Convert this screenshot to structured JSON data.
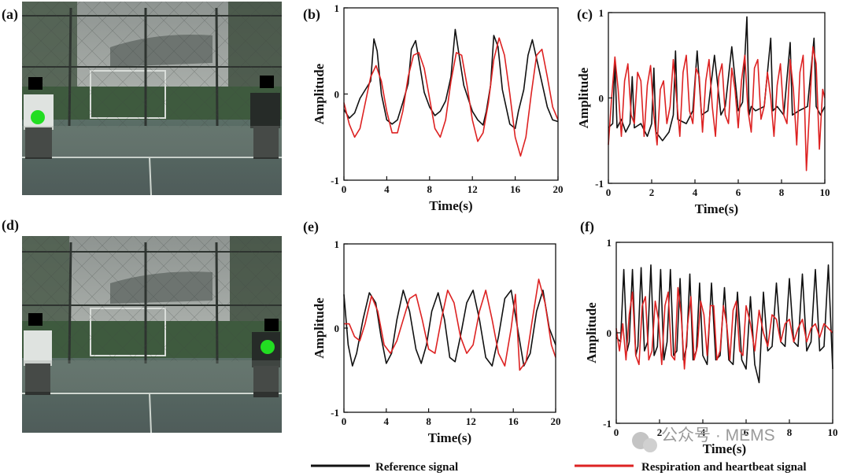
{
  "figure": {
    "photo_panels": [
      {
        "label": "(a)",
        "marker_color": "#22dd22"
      },
      {
        "label": "(d)",
        "marker_color": "#22dd22"
      }
    ],
    "legend": {
      "reference": {
        "label": "Reference signal",
        "color": "#111111"
      },
      "estimate": {
        "label": "Respiration and heartbeat signal",
        "color": "#dd2222"
      }
    },
    "watermark": "公众号 · MEMS"
  },
  "chart_data": [
    {
      "panel": "(b)",
      "type": "line",
      "xlabel": "Time(s)",
      "ylabel": "Amplitude",
      "xlim": [
        0,
        20
      ],
      "ylim": [
        -1,
        1
      ],
      "xticks": [
        "0",
        "4",
        "8",
        "12",
        "16",
        "20"
      ],
      "yticks": [
        "1",
        "0",
        "-1"
      ],
      "series": [
        {
          "name": "Reference signal",
          "color": "#111111",
          "x": [
            0,
            0.5,
            1,
            1.5,
            2,
            2.5,
            2.8,
            3.1,
            3.5,
            4,
            4.5,
            5,
            5.5,
            6,
            6.3,
            6.7,
            7,
            7.5,
            8,
            8.5,
            9,
            9.5,
            10,
            10.4,
            10.7,
            11.2,
            12,
            12.5,
            13,
            13.3,
            13.7,
            14,
            14.4,
            14.8,
            15.5,
            16,
            16.3,
            16.8,
            17.2,
            17.6,
            18.2,
            19,
            19.5,
            20
          ],
          "y": [
            -0.18,
            -0.28,
            -0.22,
            -0.05,
            0.05,
            0.15,
            0.64,
            0.5,
            0.0,
            -0.3,
            -0.35,
            -0.3,
            -0.1,
            0.12,
            0.52,
            0.62,
            0.4,
            0.02,
            -0.15,
            -0.25,
            -0.2,
            -0.08,
            0.2,
            0.75,
            0.5,
            0.1,
            -0.2,
            -0.3,
            -0.36,
            -0.2,
            0.1,
            0.68,
            0.55,
            0.05,
            -0.35,
            -0.4,
            -0.2,
            0.05,
            0.45,
            0.63,
            0.3,
            -0.15,
            -0.3,
            -0.32
          ]
        },
        {
          "name": "Respiration and heartbeat signal",
          "color": "#dd2222",
          "x": [
            0,
            0.5,
            1,
            1.5,
            2,
            2.5,
            3,
            3.5,
            4,
            4.5,
            5,
            5.5,
            6,
            6.5,
            7,
            7.5,
            8,
            8.5,
            9,
            9.5,
            10,
            10.5,
            11,
            11.5,
            12,
            12.5,
            13,
            13.5,
            14,
            14.5,
            15,
            15.5,
            16,
            16.5,
            17,
            17.5,
            18,
            18.5,
            19,
            19.5,
            20
          ],
          "y": [
            -0.1,
            -0.35,
            -0.5,
            -0.4,
            -0.1,
            0.2,
            0.33,
            0.15,
            -0.2,
            -0.45,
            -0.45,
            -0.2,
            0.2,
            0.45,
            0.48,
            0.3,
            -0.05,
            -0.4,
            -0.5,
            -0.3,
            0.15,
            0.48,
            0.45,
            0.1,
            -0.3,
            -0.55,
            -0.45,
            -0.1,
            0.4,
            0.65,
            0.45,
            0.0,
            -0.5,
            -0.72,
            -0.5,
            0.0,
            0.45,
            0.52,
            0.2,
            -0.15,
            -0.3
          ]
        }
      ]
    },
    {
      "panel": "(c)",
      "type": "line",
      "xlabel": "Time(s)",
      "ylabel": "Amplitude",
      "xlim": [
        0,
        10
      ],
      "ylim": [
        -1,
        1
      ],
      "xticks": [
        "0",
        "2",
        "4",
        "6",
        "8",
        "10"
      ],
      "yticks": [
        "1",
        "0",
        "-1"
      ],
      "series": [
        {
          "name": "Reference signal",
          "color": "#111111",
          "x": [
            0,
            0.2,
            0.3,
            0.4,
            0.6,
            0.8,
            1.0,
            1.1,
            1.2,
            1.5,
            1.8,
            2.0,
            2.1,
            2.2,
            2.5,
            2.8,
            3.0,
            3.1,
            3.2,
            3.6,
            3.9,
            4.1,
            4.3,
            4.6,
            4.9,
            5.2,
            5.4,
            5.7,
            6.0,
            6.2,
            6.4,
            6.5,
            6.6,
            6.8,
            7.2,
            7.5,
            7.6,
            7.8,
            8.1,
            8.4,
            8.5,
            8.8,
            9.2,
            9.5,
            9.6,
            9.8,
            10.0
          ],
          "y": [
            -0.35,
            -0.3,
            0.45,
            -0.35,
            -0.25,
            -0.4,
            -0.3,
            0.25,
            -0.35,
            -0.3,
            -0.45,
            -0.3,
            0.35,
            -0.4,
            -0.5,
            -0.4,
            -0.2,
            0.55,
            -0.25,
            -0.3,
            -0.15,
            0.55,
            -0.2,
            -0.15,
            0.5,
            -0.2,
            -0.1,
            0.6,
            -0.15,
            -0.05,
            0.95,
            -0.2,
            -0.1,
            -0.15,
            -0.1,
            0.7,
            -0.15,
            -0.1,
            -0.2,
            0.65,
            -0.2,
            -0.15,
            -0.1,
            0.7,
            -0.1,
            -0.2,
            -0.1
          ]
        },
        {
          "name": "Respiration and heartbeat signal",
          "color": "#dd2222",
          "x": [
            0,
            0.15,
            0.3,
            0.45,
            0.6,
            0.75,
            0.9,
            1.05,
            1.2,
            1.35,
            1.5,
            1.65,
            1.8,
            1.95,
            2.1,
            2.25,
            2.4,
            2.55,
            2.7,
            2.85,
            3.0,
            3.15,
            3.3,
            3.45,
            3.6,
            3.75,
            3.9,
            4.05,
            4.2,
            4.35,
            4.5,
            4.65,
            4.8,
            4.95,
            5.1,
            5.25,
            5.4,
            5.55,
            5.7,
            5.85,
            6.0,
            6.15,
            6.3,
            6.45,
            6.6,
            6.75,
            6.9,
            7.05,
            7.2,
            7.35,
            7.5,
            7.65,
            7.8,
            7.95,
            8.1,
            8.25,
            8.4,
            8.55,
            8.7,
            8.85,
            9.0,
            9.15,
            9.3,
            9.45,
            9.6,
            9.75,
            9.9,
            10.0
          ],
          "y": [
            -0.55,
            0.0,
            0.48,
            0.1,
            -0.45,
            0.2,
            0.4,
            -0.2,
            -0.3,
            0.3,
            0.2,
            -0.45,
            0.15,
            0.38,
            -0.2,
            -0.55,
            0.1,
            0.2,
            -0.3,
            -0.1,
            0.45,
            0.0,
            -0.45,
            0.3,
            0.5,
            -0.15,
            -0.3,
            0.35,
            0.25,
            -0.4,
            0.2,
            0.45,
            -0.1,
            -0.45,
            0.25,
            0.4,
            -0.2,
            -0.3,
            0.35,
            0.1,
            -0.35,
            0.2,
            0.5,
            -0.15,
            -0.4,
            0.35,
            0.45,
            -0.25,
            -0.1,
            0.3,
            0.0,
            -0.45,
            0.15,
            0.4,
            -0.2,
            -0.3,
            0.45,
            0.1,
            -0.55,
            0.3,
            0.5,
            -0.85,
            -0.1,
            0.6,
            0.4,
            -0.6,
            0.1,
            0.0
          ]
        }
      ]
    },
    {
      "panel": "(e)",
      "type": "line",
      "xlabel": "Time(s)",
      "ylabel": "Amplitude",
      "xlim": [
        0,
        20
      ],
      "ylim": [
        -1,
        1
      ],
      "xticks": [
        "0",
        "4",
        "8",
        "12",
        "16",
        "20"
      ],
      "yticks": [
        "1",
        "0",
        "-1"
      ],
      "series": [
        {
          "name": "Reference signal",
          "color": "#111111",
          "x": [
            0,
            0.4,
            0.8,
            1.2,
            1.8,
            2.4,
            3.0,
            3.5,
            4.0,
            4.5,
            5.0,
            5.6,
            6.2,
            6.8,
            7.3,
            7.8,
            8.3,
            8.9,
            9.5,
            10.0,
            10.5,
            11.0,
            11.6,
            12.2,
            12.8,
            13.4,
            14.0,
            14.6,
            15.2,
            15.8,
            16.4,
            17.0,
            17.6,
            18.2,
            18.8,
            19.4,
            20.0
          ],
          "y": [
            0.4,
            -0.2,
            -0.45,
            -0.3,
            0.1,
            0.42,
            0.3,
            -0.1,
            -0.42,
            -0.3,
            0.1,
            0.45,
            0.2,
            -0.25,
            -0.42,
            -0.2,
            0.2,
            0.42,
            0.1,
            -0.35,
            -0.4,
            -0.1,
            0.3,
            0.45,
            0.1,
            -0.35,
            -0.45,
            -0.1,
            0.35,
            0.45,
            0.0,
            -0.45,
            -0.3,
            0.2,
            0.45,
            0.0,
            -0.2
          ]
        },
        {
          "name": "Respiration and heartbeat signal",
          "color": "#dd2222",
          "x": [
            0,
            0.5,
            1.0,
            1.5,
            2.0,
            2.6,
            3.2,
            3.8,
            4.4,
            5.0,
            5.6,
            6.2,
            6.8,
            7.4,
            8.0,
            8.6,
            9.2,
            9.8,
            10.4,
            11.0,
            11.6,
            12.2,
            12.8,
            13.4,
            14.0,
            14.6,
            15.2,
            15.8,
            16.2,
            16.6,
            17.2,
            17.8,
            18.4,
            19.0,
            19.6,
            20.0
          ],
          "y": [
            0.05,
            0.05,
            -0.1,
            -0.15,
            0.05,
            0.38,
            0.2,
            -0.2,
            -0.3,
            -0.15,
            0.1,
            0.35,
            0.4,
            0.1,
            -0.25,
            -0.3,
            0.1,
            0.45,
            0.3,
            -0.1,
            -0.3,
            -0.2,
            0.2,
            0.45,
            0.1,
            -0.3,
            -0.45,
            0.0,
            0.4,
            -0.5,
            -0.4,
            0.1,
            0.58,
            0.3,
            -0.2,
            -0.35
          ]
        }
      ]
    },
    {
      "panel": "(f)",
      "type": "line",
      "xlabel": "Time(s)",
      "ylabel": "Amplitude",
      "xlim": [
        0,
        10
      ],
      "ylim": [
        -1,
        1
      ],
      "xticks": [
        "0",
        "2",
        "4",
        "6",
        "8",
        "10"
      ],
      "yticks": [
        "1",
        "0",
        "-1"
      ],
      "series": [
        {
          "name": "Reference signal",
          "color": "#111111",
          "x": [
            0,
            0.2,
            0.35,
            0.5,
            0.6,
            0.75,
            0.9,
            1.0,
            1.15,
            1.3,
            1.45,
            1.6,
            1.75,
            1.9,
            2.05,
            2.2,
            2.35,
            2.5,
            2.65,
            2.8,
            2.95,
            3.1,
            3.25,
            3.4,
            3.55,
            3.7,
            3.85,
            4.0,
            4.2,
            4.4,
            4.6,
            4.8,
            5.0,
            5.2,
            5.4,
            5.6,
            5.8,
            6.0,
            6.2,
            6.4,
            6.6,
            6.8,
            7.0,
            7.2,
            7.4,
            7.6,
            7.8,
            8.0,
            8.2,
            8.4,
            8.6,
            8.8,
            9.0,
            9.2,
            9.4,
            9.6,
            9.8,
            10.0
          ],
          "y": [
            -0.05,
            -0.1,
            0.7,
            -0.2,
            -0.1,
            0.7,
            -0.25,
            -0.15,
            0.72,
            -0.2,
            -0.1,
            0.75,
            -0.25,
            -0.15,
            0.7,
            -0.3,
            -0.1,
            0.7,
            -0.25,
            -0.2,
            0.6,
            -0.3,
            -0.15,
            0.65,
            -0.3,
            -0.2,
            0.55,
            -0.25,
            -0.35,
            0.55,
            -0.3,
            -0.25,
            0.5,
            -0.3,
            -0.35,
            0.45,
            -0.3,
            -0.4,
            0.4,
            -0.35,
            -0.55,
            0.45,
            -0.2,
            -0.15,
            0.55,
            -0.1,
            -0.15,
            0.6,
            -0.1,
            -0.15,
            0.65,
            -0.2,
            -0.1,
            0.7,
            -0.2,
            -0.15,
            0.75,
            -0.4
          ]
        },
        {
          "name": "Respiration and heartbeat signal",
          "color": "#dd2222",
          "x": [
            0,
            0.15,
            0.3,
            0.45,
            0.6,
            0.75,
            0.9,
            1.05,
            1.2,
            1.35,
            1.5,
            1.65,
            1.8,
            1.95,
            2.1,
            2.25,
            2.4,
            2.55,
            2.7,
            2.85,
            3.0,
            3.15,
            3.3,
            3.45,
            3.6,
            3.75,
            3.9,
            4.05,
            4.2,
            4.35,
            4.5,
            4.65,
            4.8,
            4.95,
            5.1,
            5.25,
            5.4,
            5.55,
            5.7,
            5.85,
            6.0,
            6.2,
            6.4,
            6.6,
            6.8,
            7.0,
            7.2,
            7.4,
            7.6,
            7.8,
            8.0,
            8.2,
            8.4,
            8.6,
            8.8,
            9.0,
            9.2,
            9.4,
            9.6,
            9.8,
            10.0
          ],
          "y": [
            0.05,
            -0.2,
            0.1,
            -0.3,
            0.2,
            0.45,
            -0.25,
            -0.35,
            0.3,
            0.4,
            -0.3,
            -0.2,
            0.35,
            0.15,
            -0.35,
            0.3,
            0.45,
            -0.25,
            -0.3,
            0.5,
            0.2,
            -0.4,
            0.1,
            0.4,
            -0.3,
            -0.15,
            0.35,
            0.2,
            -0.25,
            0.3,
            0.3,
            -0.3,
            -0.2,
            0.3,
            0.1,
            -0.3,
            0.25,
            0.35,
            -0.2,
            -0.25,
            0.3,
            0.1,
            -0.2,
            0.25,
            0.0,
            -0.15,
            0.2,
            0.15,
            -0.1,
            0.1,
            0.15,
            -0.1,
            0.05,
            0.15,
            -0.1,
            0.05,
            0.1,
            -0.05,
            0.1,
            0.05,
            0.0
          ]
        }
      ]
    }
  ]
}
